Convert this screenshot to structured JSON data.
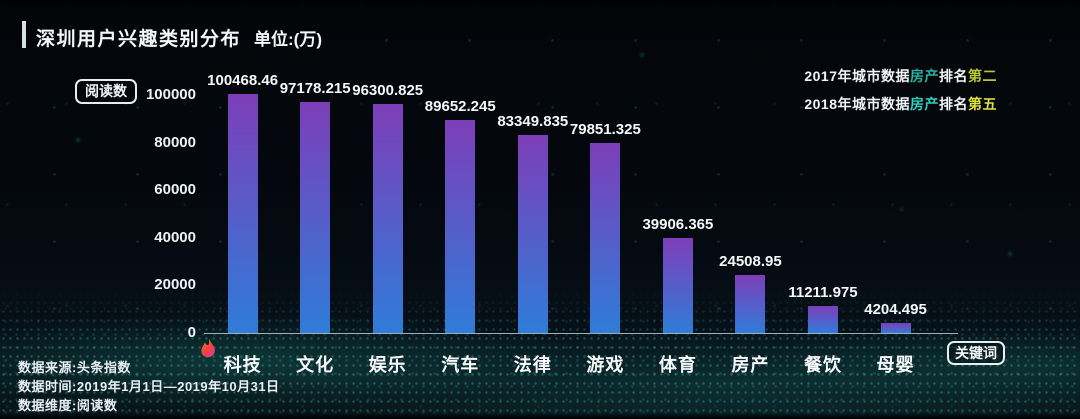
{
  "header": {
    "title": "深圳用户兴趣类别分布",
    "unit": "单位:(万)"
  },
  "ranking_notes": [
    {
      "parts": [
        {
          "text": "2017年城市数据",
          "color": "#f2f5f7"
        },
        {
          "text": "房产",
          "color": "#27b3a2"
        },
        {
          "text": "排名",
          "color": "#f2f5f7"
        },
        {
          "text": "第二",
          "color": "#b9c832"
        }
      ]
    },
    {
      "parts": [
        {
          "text": "2018年城市数据",
          "color": "#f2f5f7"
        },
        {
          "text": "房产",
          "color": "#2fd0bd"
        },
        {
          "text": "排名",
          "color": "#f2f5f7"
        },
        {
          "text": "第五",
          "color": "#dce23f"
        }
      ]
    }
  ],
  "badges": {
    "y_axis": "阅读数",
    "keyword": "关键词"
  },
  "footer": {
    "lines": [
      "数据来源:头条指数",
      "数据时间:2019年1月1日—2019年10月31日",
      "数据维度:阅读数"
    ]
  },
  "chart_data": {
    "type": "bar",
    "title": "深圳用户兴趣类别分布",
    "unit": "万",
    "ylabel": "阅读数",
    "xlabel": "",
    "categories": [
      "科技",
      "文化",
      "娱乐",
      "汽车",
      "法律",
      "游戏",
      "体育",
      "房产",
      "餐饮",
      "母婴"
    ],
    "values": [
      100468.46,
      97178.215,
      96300.825,
      89652.245,
      83349.835,
      79851.325,
      39906.365,
      24508.95,
      11211.975,
      4204.495
    ],
    "yticks": [
      0,
      20000,
      40000,
      60000,
      80000,
      100000
    ],
    "ylim": [
      0,
      105000
    ],
    "grid": false,
    "legend": false,
    "hot_index": 0,
    "bar_color_top": "#7d3eb8",
    "bar_color_bottom": "#2f7cd9"
  }
}
